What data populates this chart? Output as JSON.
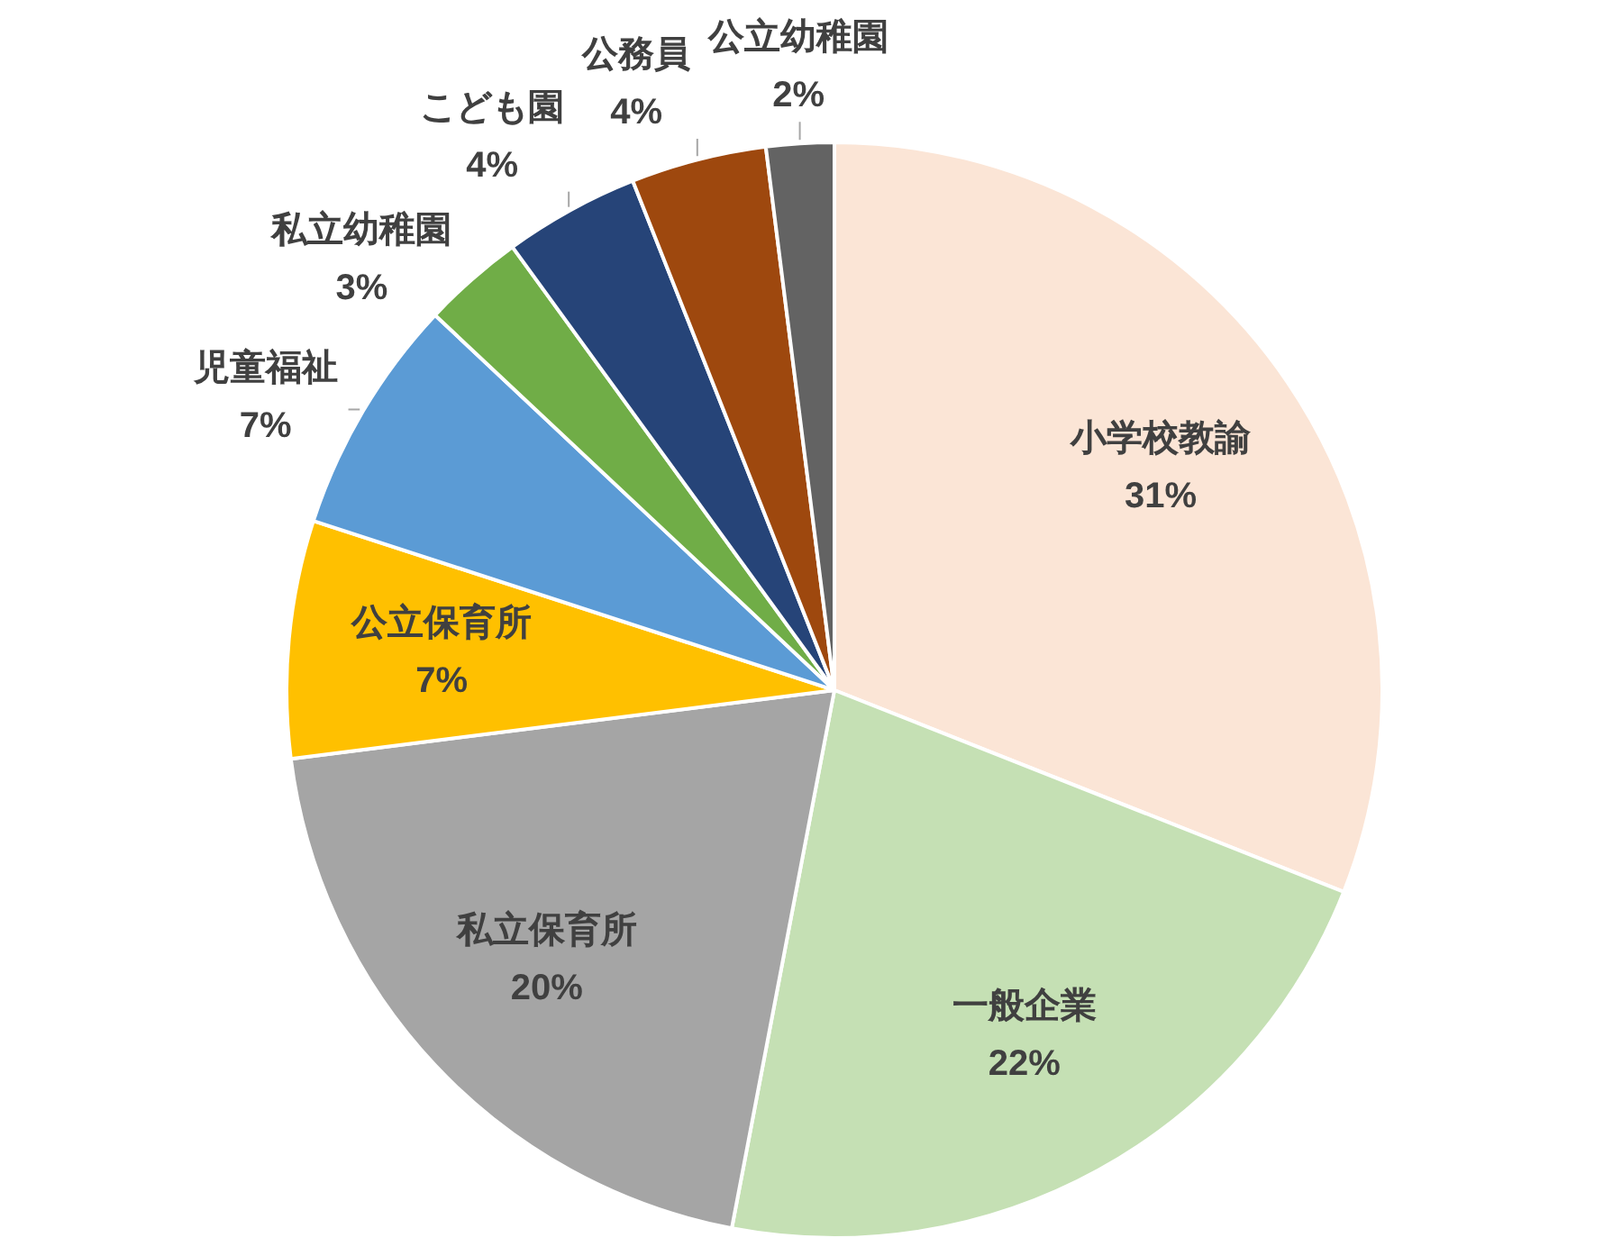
{
  "chart_data": {
    "type": "pie",
    "categories": [
      "小学校教諭",
      "一般企業",
      "私立保育所",
      "公立保育所",
      "児童福祉",
      "私立幼稚園",
      "こども園",
      "公務員",
      "公立幼稚園"
    ],
    "values": [
      31,
      22,
      20,
      7,
      7,
      3,
      4,
      4,
      2
    ],
    "value_labels": [
      "31%",
      "22%",
      "20%",
      "7%",
      "7%",
      "3%",
      "4%",
      "4%",
      "2%"
    ],
    "colors": [
      "#fbe5d6",
      "#c5e0b4",
      "#a5a5a5",
      "#ffc000",
      "#5b9bd5",
      "#70ad47",
      "#264478",
      "#9e480e",
      "#636363"
    ]
  }
}
